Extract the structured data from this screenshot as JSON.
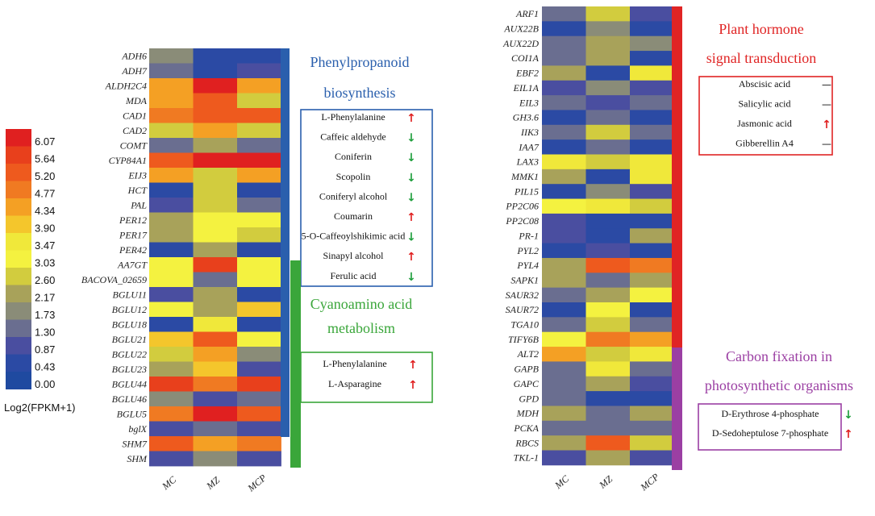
{
  "chart_data": {
    "type": "heatmap",
    "legend": {
      "title": "Log2(FPKM+1)",
      "ticks": [
        "6.07",
        "5.64",
        "5.20",
        "4.77",
        "4.34",
        "3.90",
        "3.47",
        "3.03",
        "2.60",
        "2.17",
        "1.73",
        "1.30",
        "0.87",
        "0.43",
        "0.00"
      ],
      "colors": [
        "#e02020",
        "#e8401c",
        "#ee5a1e",
        "#f07a22",
        "#f4a024",
        "#f4c62c",
        "#f0e83a",
        "#f4f240",
        "#d2cc3e",
        "#a8a25a",
        "#8a8c78",
        "#6a6e90",
        "#4a4ea0",
        "#2b4aa4",
        "#1f4aa0"
      ]
    },
    "heatmaps": [
      {
        "columns": [
          "MC",
          "MZ",
          "MCP"
        ],
        "rows": [
          {
            "gene": "ADH6",
            "values": [
              1.9,
              0.3,
              0.3
            ]
          },
          {
            "gene": "ADH7",
            "values": [
              1.1,
              0.4,
              0.7
            ]
          },
          {
            "gene": "ALDH2C4",
            "values": [
              4.3,
              6.0,
              4.5
            ]
          },
          {
            "gene": "MDA",
            "values": [
              4.3,
              5.3,
              2.8
            ]
          },
          {
            "gene": "CAD1",
            "values": [
              4.8,
              5.3,
              5.0
            ]
          },
          {
            "gene": "CAD2",
            "values": [
              2.8,
              4.4,
              2.8
            ]
          },
          {
            "gene": "COMT",
            "values": [
              1.1,
              2.2,
              1.1
            ]
          },
          {
            "gene": "CYP84A1",
            "values": [
              5.2,
              6.0,
              6.0
            ]
          },
          {
            "gene": "EIJ3",
            "values": [
              4.2,
              2.7,
              4.3
            ]
          },
          {
            "gene": "HCT",
            "values": [
              0.3,
              2.7,
              0.3
            ]
          },
          {
            "gene": "PAL",
            "values": [
              0.7,
              2.4,
              1.1
            ]
          },
          {
            "gene": "PER12",
            "values": [
              2.3,
              3.2,
              3.2
            ]
          },
          {
            "gene": "PER17",
            "values": [
              2.3,
              3.2,
              2.7
            ]
          },
          {
            "gene": "PER42",
            "values": [
              0.3,
              2.2,
              0.3
            ]
          },
          {
            "gene": "AA7GT",
            "values": [
              3.1,
              5.6,
              3.2
            ]
          },
          {
            "gene": "BACOVA_02659",
            "values": [
              3.1,
              1.2,
              3.2
            ]
          },
          {
            "gene": "BGLU11",
            "values": [
              0.8,
              2.2,
              0.4
            ]
          },
          {
            "gene": "BGLU12",
            "values": [
              3.0,
              2.2,
              3.8
            ]
          },
          {
            "gene": "BGLU18",
            "values": [
              0.3,
              3.3,
              0.3
            ]
          },
          {
            "gene": "BGLU21",
            "values": [
              3.8,
              5.3,
              3.1
            ]
          },
          {
            "gene": "BGLU22",
            "values": [
              2.7,
              4.3,
              1.8
            ]
          },
          {
            "gene": "BGLU23",
            "values": [
              2.1,
              3.7,
              0.8
            ]
          },
          {
            "gene": "BGLU44",
            "values": [
              5.6,
              4.6,
              5.8
            ]
          },
          {
            "gene": "BGLU46",
            "values": [
              1.9,
              0.8,
              1.2
            ]
          },
          {
            "gene": "BGLU5",
            "values": [
              4.8,
              6.0,
              5.3
            ]
          },
          {
            "gene": "bglX",
            "values": [
              0.9,
              1.3,
              0.7
            ]
          },
          {
            "gene": "SHM7",
            "values": [
              5.2,
              4.2,
              4.9
            ]
          },
          {
            "gene": "SHM",
            "values": [
              0.8,
              1.9,
              0.8
            ]
          }
        ],
        "pathways": [
          {
            "title_lines": [
              "Phenylpropanoid",
              "biosynthesis"
            ],
            "color": "#2a5fad",
            "metabolites": [
              {
                "name": "L-Phenylalanine",
                "dir": "up"
              },
              {
                "name": "Caffeic aldehyde",
                "dir": "down"
              },
              {
                "name": "Coniferin",
                "dir": "down"
              },
              {
                "name": "Scopolin",
                "dir": "down"
              },
              {
                "name": "Coniferyl alcohol",
                "dir": "down"
              },
              {
                "name": "Coumarin",
                "dir": "up"
              },
              {
                "name": "5-O-Caffeoylshikimic acid",
                "dir": "down"
              },
              {
                "name": "Sinapyl alcohol",
                "dir": "up"
              },
              {
                "name": "Ferulic acid",
                "dir": "down"
              }
            ]
          },
          {
            "title_lines": [
              "Cyanoamino acid",
              "metabolism"
            ],
            "color": "#3aa63a",
            "metabolites": [
              {
                "name": "L-Phenylalanine",
                "dir": "up"
              },
              {
                "name": "L-Asparagine",
                "dir": "up"
              }
            ]
          }
        ]
      },
      {
        "columns": [
          "MC",
          "MZ",
          "MCP"
        ],
        "rows": [
          {
            "gene": "ARF1",
            "values": [
              1.3,
              2.4,
              0.7
            ]
          },
          {
            "gene": "AUX22B",
            "values": [
              0.3,
              1.9,
              0.3
            ]
          },
          {
            "gene": "AUX22D",
            "values": [
              1.2,
              2.3,
              1.7
            ]
          },
          {
            "gene": "COI1A",
            "values": [
              1.1,
              2.3,
              0.6
            ]
          },
          {
            "gene": "EBF2",
            "values": [
              2.2,
              0.5,
              3.4
            ]
          },
          {
            "gene": "EIL1A",
            "values": [
              0.7,
              1.9,
              0.7
            ]
          },
          {
            "gene": "EIL3",
            "values": [
              1.2,
              0.8,
              1.2
            ]
          },
          {
            "gene": "GH3.6",
            "values": [
              0.4,
              1.2,
              0.4
            ]
          },
          {
            "gene": "IIK3",
            "values": [
              1.3,
              2.6,
              1.2
            ]
          },
          {
            "gene": "IAA7",
            "values": [
              0.4,
              1.1,
              0.4
            ]
          },
          {
            "gene": "LAX3",
            "values": [
              3.5,
              2.7,
              3.3
            ]
          },
          {
            "gene": "MMK1",
            "values": [
              2.3,
              0.4,
              3.3
            ]
          },
          {
            "gene": "PIL15",
            "values": [
              0.3,
              1.9,
              0.7
            ]
          },
          {
            "gene": "PP2C06",
            "values": [
              3.0,
              3.5,
              2.4
            ]
          },
          {
            "gene": "PP2C08",
            "values": [
              0.7,
              0.3,
              0.3
            ]
          },
          {
            "gene": "PR-1",
            "values": [
              0.7,
              0.3,
              2.2
            ]
          },
          {
            "gene": "PYL2",
            "values": [
              0.3,
              0.7,
              0.3
            ]
          },
          {
            "gene": "PYL4",
            "values": [
              2.3,
              5.3,
              4.7
            ]
          },
          {
            "gene": "SAPK1",
            "values": [
              2.3,
              1.2,
              2.3
            ]
          },
          {
            "gene": "SAUR32",
            "values": [
              1.3,
              2.3,
              3.1
            ]
          },
          {
            "gene": "SAUR72",
            "values": [
              0.3,
              3.2,
              0.3
            ]
          },
          {
            "gene": "TGA10",
            "values": [
              1.2,
              2.7,
              1.2
            ]
          },
          {
            "gene": "TIFY6B",
            "values": [
              3.2,
              4.8,
              4.3
            ]
          },
          {
            "gene": "ALT2",
            "values": [
              4.2,
              2.6,
              3.6
            ]
          },
          {
            "gene": "GAPB",
            "values": [
              1.3,
              3.5,
              1.3
            ]
          },
          {
            "gene": "GAPC",
            "values": [
              1.3,
              2.3,
              0.7
            ]
          },
          {
            "gene": "GPD",
            "values": [
              1.2,
              0.4,
              0.4
            ]
          },
          {
            "gene": "MDH",
            "values": [
              2.3,
              1.2,
              2.0
            ]
          },
          {
            "gene": "PCKA",
            "values": [
              1.3,
              1.2,
              1.3
            ]
          },
          {
            "gene": "RBCS",
            "values": [
              2.0,
              5.0,
              2.7
            ]
          },
          {
            "gene": "TKL-1",
            "values": [
              0.7,
              2.0,
              0.7
            ]
          }
        ],
        "pathways": [
          {
            "title_lines": [
              "Plant hormone",
              "signal transduction"
            ],
            "color": "#e02424",
            "metabolites": [
              {
                "name": "Abscisic acid",
                "dir": "none"
              },
              {
                "name": "Salicylic acid",
                "dir": "none"
              },
              {
                "name": "Jasmonic acid",
                "dir": "up"
              },
              {
                "name": "Gibberellin A4",
                "dir": "none"
              }
            ]
          },
          {
            "title_lines": [
              "Carbon fixation in",
              "photosynthetic organisms"
            ],
            "color": "#9b3fa3",
            "metabolites": [
              {
                "name": "D-Erythrose 4-phosphate",
                "dir": "down"
              },
              {
                "name": "D-Sedoheptulose 7-phosphate",
                "dir": "up"
              }
            ]
          }
        ]
      }
    ]
  }
}
